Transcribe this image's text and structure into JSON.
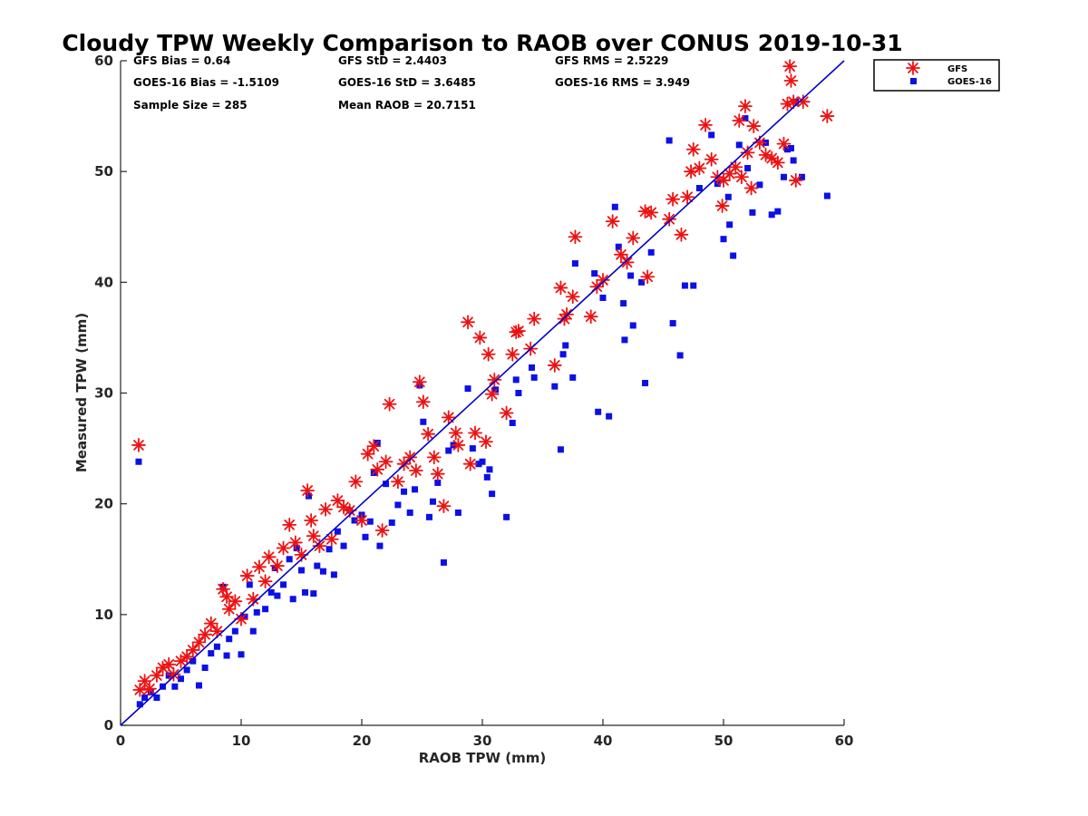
{
  "chart_data": {
    "type": "scatter",
    "title": "Cloudy TPW Weekly Comparison to RAOB over CONUS 2019-10-31",
    "xlabel": "RAOB TPW (mm)",
    "ylabel": "Measured TPW (mm)",
    "xlim": [
      0,
      60
    ],
    "ylim": [
      0,
      60
    ],
    "xticks": [
      0,
      10,
      20,
      30,
      40,
      50,
      60
    ],
    "yticks": [
      0,
      10,
      20,
      30,
      40,
      50,
      60
    ],
    "grid": false,
    "legend_position": "outside top-right",
    "reference_line": {
      "x": [
        0,
        60
      ],
      "y": [
        0,
        60
      ],
      "color": "#0000cc"
    },
    "stats": [
      [
        "GFS Bias = 0.64",
        "GFS StD = 2.4403",
        "GFS RMS = 2.5229"
      ],
      [
        "GOES-16 Bias = -1.5109",
        "GOES-16 StD = 3.6485",
        "GOES-16 RMS = 3.949"
      ],
      [
        "Sample Size = 285",
        "Mean RAOB = 20.7151",
        ""
      ]
    ],
    "series": [
      {
        "name": "GFS",
        "marker": "asterisk",
        "color": "#ee1111",
        "points": [
          [
            1.5,
            25.3
          ],
          [
            1.6,
            3.2
          ],
          [
            2,
            4
          ],
          [
            2.4,
            3.3
          ],
          [
            3,
            4.5
          ],
          [
            3.5,
            5.2
          ],
          [
            4,
            5.5
          ],
          [
            4.4,
            4.6
          ],
          [
            5,
            5.8
          ],
          [
            5.5,
            6.2
          ],
          [
            6,
            6.8
          ],
          [
            6.5,
            7.5
          ],
          [
            7,
            8.2
          ],
          [
            7.5,
            9.2
          ],
          [
            8,
            8.5
          ],
          [
            8.5,
            12.3
          ],
          [
            8.8,
            11.6
          ],
          [
            9,
            10.5
          ],
          [
            9.5,
            11.2
          ],
          [
            10,
            9.6
          ],
          [
            10.5,
            13.5
          ],
          [
            11,
            11.4
          ],
          [
            11.5,
            14.3
          ],
          [
            12,
            13
          ],
          [
            12.3,
            15.2
          ],
          [
            13,
            14.4
          ],
          [
            13.5,
            16
          ],
          [
            14,
            18.1
          ],
          [
            14.5,
            16.5
          ],
          [
            15,
            15.4
          ],
          [
            15.5,
            21.2
          ],
          [
            15.8,
            18.5
          ],
          [
            16,
            17.1
          ],
          [
            16.5,
            16.2
          ],
          [
            17,
            19.5
          ],
          [
            17.5,
            16.8
          ],
          [
            18,
            20.3
          ],
          [
            18.5,
            19.7
          ],
          [
            19,
            19.4
          ],
          [
            19.5,
            22
          ],
          [
            20,
            18.5
          ],
          [
            20.5,
            24.5
          ],
          [
            21,
            25.2
          ],
          [
            21.3,
            23.1
          ],
          [
            21.7,
            17.6
          ],
          [
            22,
            23.8
          ],
          [
            22.3,
            29
          ],
          [
            23,
            22
          ],
          [
            23.5,
            23.6
          ],
          [
            24,
            24.2
          ],
          [
            24.5,
            23
          ],
          [
            24.8,
            31
          ],
          [
            25.1,
            29.2
          ],
          [
            25.5,
            26.3
          ],
          [
            26,
            24.2
          ],
          [
            26.3,
            22.7
          ],
          [
            26.8,
            19.8
          ],
          [
            27.2,
            27.8
          ],
          [
            27.8,
            26.4
          ],
          [
            28,
            25.3
          ],
          [
            28.8,
            36.4
          ],
          [
            29,
            23.6
          ],
          [
            29.4,
            26.4
          ],
          [
            29.8,
            35
          ],
          [
            30.3,
            25.6
          ],
          [
            30.5,
            33.5
          ],
          [
            30.8,
            29.9
          ],
          [
            31,
            31.2
          ],
          [
            32,
            28.2
          ],
          [
            32.5,
            33.5
          ],
          [
            32.8,
            35.5
          ],
          [
            33,
            35.6
          ],
          [
            34,
            34
          ],
          [
            34.3,
            36.7
          ],
          [
            36,
            32.5
          ],
          [
            36.5,
            39.5
          ],
          [
            36.8,
            36.7
          ],
          [
            37,
            37.1
          ],
          [
            37.5,
            38.7
          ],
          [
            37.7,
            44.1
          ],
          [
            39,
            36.9
          ],
          [
            39.5,
            39.6
          ],
          [
            40,
            40.2
          ],
          [
            40.8,
            45.5
          ],
          [
            41.5,
            42.5
          ],
          [
            42,
            41.8
          ],
          [
            42.5,
            44
          ],
          [
            43.5,
            46.4
          ],
          [
            43.7,
            40.5
          ],
          [
            44,
            46.3
          ],
          [
            45.5,
            45.7
          ],
          [
            45.8,
            47.5
          ],
          [
            46.5,
            44.3
          ],
          [
            47,
            47.7
          ],
          [
            47.3,
            50
          ],
          [
            47.5,
            52
          ],
          [
            48,
            50.3
          ],
          [
            48.5,
            54.2
          ],
          [
            49,
            51.1
          ],
          [
            49.5,
            49.5
          ],
          [
            49.9,
            46.9
          ],
          [
            50,
            49.2
          ],
          [
            50.5,
            49.8
          ],
          [
            51,
            50.4
          ],
          [
            51.3,
            54.6
          ],
          [
            51.5,
            49.5
          ],
          [
            51.8,
            55.9
          ],
          [
            52,
            51.7
          ],
          [
            52.3,
            48.5
          ],
          [
            52.5,
            54.1
          ],
          [
            53,
            52.6
          ],
          [
            53.5,
            51.5
          ],
          [
            54,
            51.2
          ],
          [
            54.5,
            50.8
          ],
          [
            55,
            52.5
          ],
          [
            55.3,
            56.1
          ],
          [
            55.5,
            59.5
          ],
          [
            55.6,
            58.2
          ],
          [
            55.8,
            56.3
          ],
          [
            56,
            49.2
          ],
          [
            56.6,
            56.3
          ],
          [
            58.6,
            55
          ]
        ]
      },
      {
        "name": "GOES-16",
        "marker": "square",
        "color": "#0b10e8",
        "points": [
          [
            1.5,
            23.8
          ],
          [
            1.6,
            1.9
          ],
          [
            2,
            2.5
          ],
          [
            2.5,
            3
          ],
          [
            3,
            2.5
          ],
          [
            3.5,
            3.5
          ],
          [
            4,
            4.5
          ],
          [
            4.5,
            3.5
          ],
          [
            5,
            4.2
          ],
          [
            5.5,
            5
          ],
          [
            6,
            5.8
          ],
          [
            6.5,
            3.6
          ],
          [
            7,
            5.2
          ],
          [
            7.5,
            6.5
          ],
          [
            8,
            7.1
          ],
          [
            8.5,
            12.5
          ],
          [
            8.8,
            6.3
          ],
          [
            9,
            7.8
          ],
          [
            9.5,
            8.5
          ],
          [
            10,
            6.4
          ],
          [
            10.3,
            9.8
          ],
          [
            10.7,
            12.7
          ],
          [
            11,
            8.5
          ],
          [
            11.3,
            10.2
          ],
          [
            12,
            10.5
          ],
          [
            12.5,
            12
          ],
          [
            12.8,
            14.2
          ],
          [
            13,
            11.7
          ],
          [
            13.5,
            12.7
          ],
          [
            14,
            15
          ],
          [
            14.3,
            11.4
          ],
          [
            14.6,
            16
          ],
          [
            15,
            14
          ],
          [
            15.3,
            12
          ],
          [
            15.6,
            20.7
          ],
          [
            16,
            11.9
          ],
          [
            16.3,
            14.4
          ],
          [
            16.8,
            13.9
          ],
          [
            17.3,
            15.9
          ],
          [
            17.7,
            13.6
          ],
          [
            18,
            17.5
          ],
          [
            18.5,
            16.2
          ],
          [
            19,
            19.4
          ],
          [
            19.4,
            18.5
          ],
          [
            20,
            19
          ],
          [
            20.3,
            17
          ],
          [
            20.7,
            18.4
          ],
          [
            21,
            22.8
          ],
          [
            21.3,
            25.5
          ],
          [
            21.5,
            16.2
          ],
          [
            22,
            21.8
          ],
          [
            22.5,
            18.3
          ],
          [
            23,
            19.9
          ],
          [
            23.5,
            21.1
          ],
          [
            24,
            19.2
          ],
          [
            24.4,
            21.3
          ],
          [
            24.8,
            30.7
          ],
          [
            25.1,
            27.4
          ],
          [
            25.6,
            18.8
          ],
          [
            25.9,
            20.2
          ],
          [
            26.3,
            21.9
          ],
          [
            26.8,
            14.7
          ],
          [
            27.2,
            24.8
          ],
          [
            27.6,
            25.3
          ],
          [
            28,
            19.2
          ],
          [
            28.8,
            30.4
          ],
          [
            29.2,
            25
          ],
          [
            29.7,
            23.6
          ],
          [
            30,
            23.8
          ],
          [
            30.4,
            22.4
          ],
          [
            30.6,
            23.1
          ],
          [
            30.8,
            20.9
          ],
          [
            31.1,
            30.3
          ],
          [
            32,
            18.8
          ],
          [
            32.5,
            27.3
          ],
          [
            32.8,
            31.2
          ],
          [
            33,
            30
          ],
          [
            34.1,
            32.3
          ],
          [
            34.3,
            31.4
          ],
          [
            36,
            30.6
          ],
          [
            36.5,
            24.9
          ],
          [
            36.7,
            33.5
          ],
          [
            36.9,
            34.3
          ],
          [
            37.5,
            31.4
          ],
          [
            37.7,
            41.7
          ],
          [
            39.3,
            40.8
          ],
          [
            39.6,
            28.3
          ],
          [
            40,
            38.6
          ],
          [
            40.5,
            27.9
          ],
          [
            41,
            46.8
          ],
          [
            41.3,
            43.2
          ],
          [
            41.7,
            38.1
          ],
          [
            41.8,
            34.8
          ],
          [
            42.3,
            40.6
          ],
          [
            42.5,
            36.1
          ],
          [
            43.2,
            40
          ],
          [
            43.5,
            30.9
          ],
          [
            44,
            42.7
          ],
          [
            45.5,
            52.8
          ],
          [
            45.8,
            36.3
          ],
          [
            46.4,
            33.4
          ],
          [
            46.8,
            39.7
          ],
          [
            47.5,
            39.7
          ],
          [
            48,
            48.5
          ],
          [
            49,
            53.3
          ],
          [
            49.5,
            48.9
          ],
          [
            50,
            43.9
          ],
          [
            50.4,
            47.7
          ],
          [
            50.5,
            45.2
          ],
          [
            50.8,
            42.4
          ],
          [
            51.3,
            52.4
          ],
          [
            51.8,
            54.8
          ],
          [
            52,
            50.3
          ],
          [
            52.4,
            46.3
          ],
          [
            53,
            48.8
          ],
          [
            53.5,
            52.6
          ],
          [
            54,
            46.1
          ],
          [
            54.5,
            46.4
          ],
          [
            55,
            49.5
          ],
          [
            55.3,
            52
          ],
          [
            55.6,
            52.1
          ],
          [
            55.8,
            51
          ],
          [
            56,
            56.3
          ],
          [
            56.5,
            49.5
          ],
          [
            58.6,
            47.8
          ]
        ]
      }
    ]
  }
}
